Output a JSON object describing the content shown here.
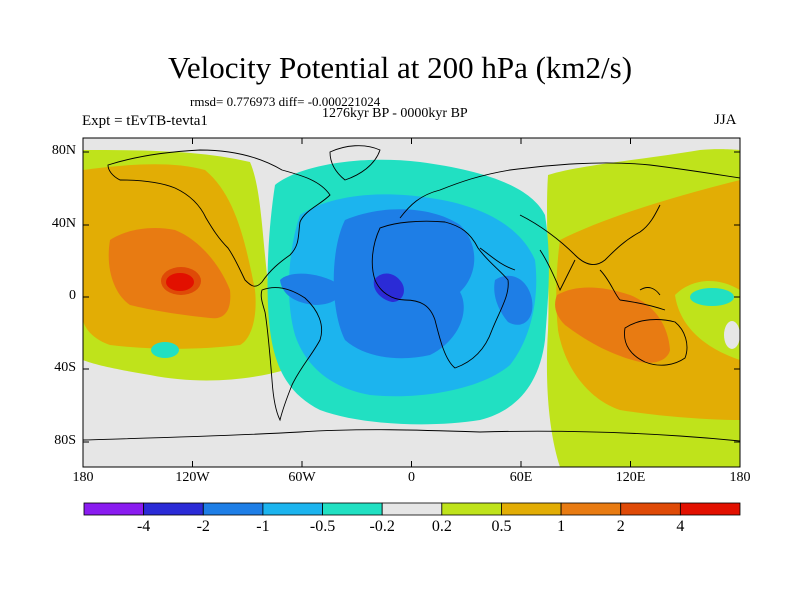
{
  "figure": {
    "title": "Velocity Potential at 200 hPa (km2/s)",
    "stats_line": "rmsd= 0.776973 diff= -0.000221024",
    "period": "1276kyr BP - 0000kyr BP",
    "experiment": "Expt = tEvTB-tevta1",
    "season": "JJA"
  },
  "map": {
    "projection": "cylindrical equidistant",
    "lat_range": [
      -90,
      90
    ],
    "lon_range": [
      -180,
      180
    ],
    "lat_tick_labels": [
      "80N",
      "40N",
      "0",
      "40S",
      "80S"
    ],
    "lon_tick_labels": [
      "180",
      "120W",
      "60W",
      "0",
      "60E",
      "120E",
      "180"
    ]
  },
  "colorbar": {
    "tick_labels": [
      "-4",
      "-2",
      "-1",
      "-0.5",
      "-0.2",
      "0.2",
      "0.5",
      "1",
      "2",
      "4"
    ],
    "colors": [
      "#8a1cf0",
      "#2b2bd6",
      "#1e7ee6",
      "#1cb4ee",
      "#21e0c2",
      "#e6e6e6",
      "#bfe31b",
      "#e2ad05",
      "#e87b12",
      "#df4a07",
      "#e21000"
    ]
  }
}
